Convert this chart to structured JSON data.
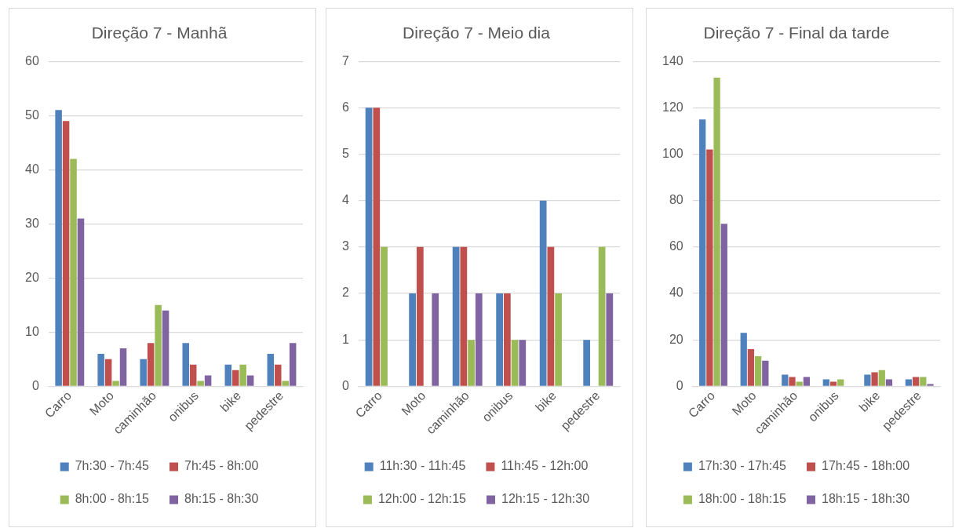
{
  "chart_data": [
    {
      "type": "bar",
      "title": "Direção 7 - Manhã",
      "categories": [
        "Carro",
        "Moto",
        "caminhão",
        "onibus",
        "bike",
        "pedestre"
      ],
      "series": [
        {
          "name": "7h:30 - 7h:45",
          "color": "#4f81bd",
          "values": [
            51,
            6,
            5,
            8,
            4,
            6
          ]
        },
        {
          "name": "7h:45 - 8h:00",
          "color": "#c0504d",
          "values": [
            49,
            5,
            8,
            4,
            3,
            4
          ]
        },
        {
          "name": "8h:00 - 8h:15",
          "color": "#9bbb59",
          "values": [
            42,
            1,
            15,
            1,
            4,
            1
          ]
        },
        {
          "name": "8h:15 - 8h:30",
          "color": "#8064a2",
          "values": [
            31,
            7,
            14,
            2,
            2,
            8
          ]
        }
      ],
      "ylim": [
        0,
        60
      ],
      "yticks": [
        0,
        10,
        20,
        30,
        40,
        50,
        60
      ],
      "grid": "y",
      "legend": "bottom"
    },
    {
      "type": "bar",
      "title": "Direção 7 - Meio dia",
      "categories": [
        "Carro",
        "Moto",
        "caminhão",
        "onibus",
        "bike",
        "pedestre"
      ],
      "series": [
        {
          "name": "11h:30 - 11h:45",
          "color": "#4f81bd",
          "values": [
            6,
            2,
            3,
            2,
            4,
            1
          ]
        },
        {
          "name": "11h:45 - 12h:00",
          "color": "#c0504d",
          "values": [
            6,
            3,
            3,
            2,
            3,
            0
          ]
        },
        {
          "name": "12h:00 - 12h:15",
          "color": "#9bbb59",
          "values": [
            3,
            0,
            1,
            1,
            2,
            3
          ]
        },
        {
          "name": "12h:15 - 12h:30",
          "color": "#8064a2",
          "values": [
            0,
            2,
            2,
            1,
            0,
            2
          ]
        }
      ],
      "ylim": [
        0,
        7
      ],
      "yticks": [
        0,
        1,
        2,
        3,
        4,
        5,
        6,
        7
      ],
      "grid": "y",
      "legend": "bottom"
    },
    {
      "type": "bar",
      "title": "Direção 7 - Final da tarde",
      "categories": [
        "Carro",
        "Moto",
        "caminhão",
        "onibus",
        "bike",
        "pedestre"
      ],
      "series": [
        {
          "name": "17h:30 - 17h:45",
          "color": "#4f81bd",
          "values": [
            115,
            23,
            5,
            3,
            5,
            3
          ]
        },
        {
          "name": "17h:45 - 18h:00",
          "color": "#c0504d",
          "values": [
            102,
            16,
            4,
            2,
            6,
            4
          ]
        },
        {
          "name": "18h:00 - 18h:15",
          "color": "#9bbb59",
          "values": [
            133,
            13,
            2,
            3,
            7,
            4
          ]
        },
        {
          "name": "18h:15 - 18h:30",
          "color": "#8064a2",
          "values": [
            70,
            11,
            4,
            0,
            3,
            1
          ]
        }
      ],
      "ylim": [
        0,
        140
      ],
      "yticks": [
        0,
        20,
        40,
        60,
        80,
        100,
        120,
        140
      ],
      "grid": "y",
      "legend": "bottom"
    }
  ]
}
